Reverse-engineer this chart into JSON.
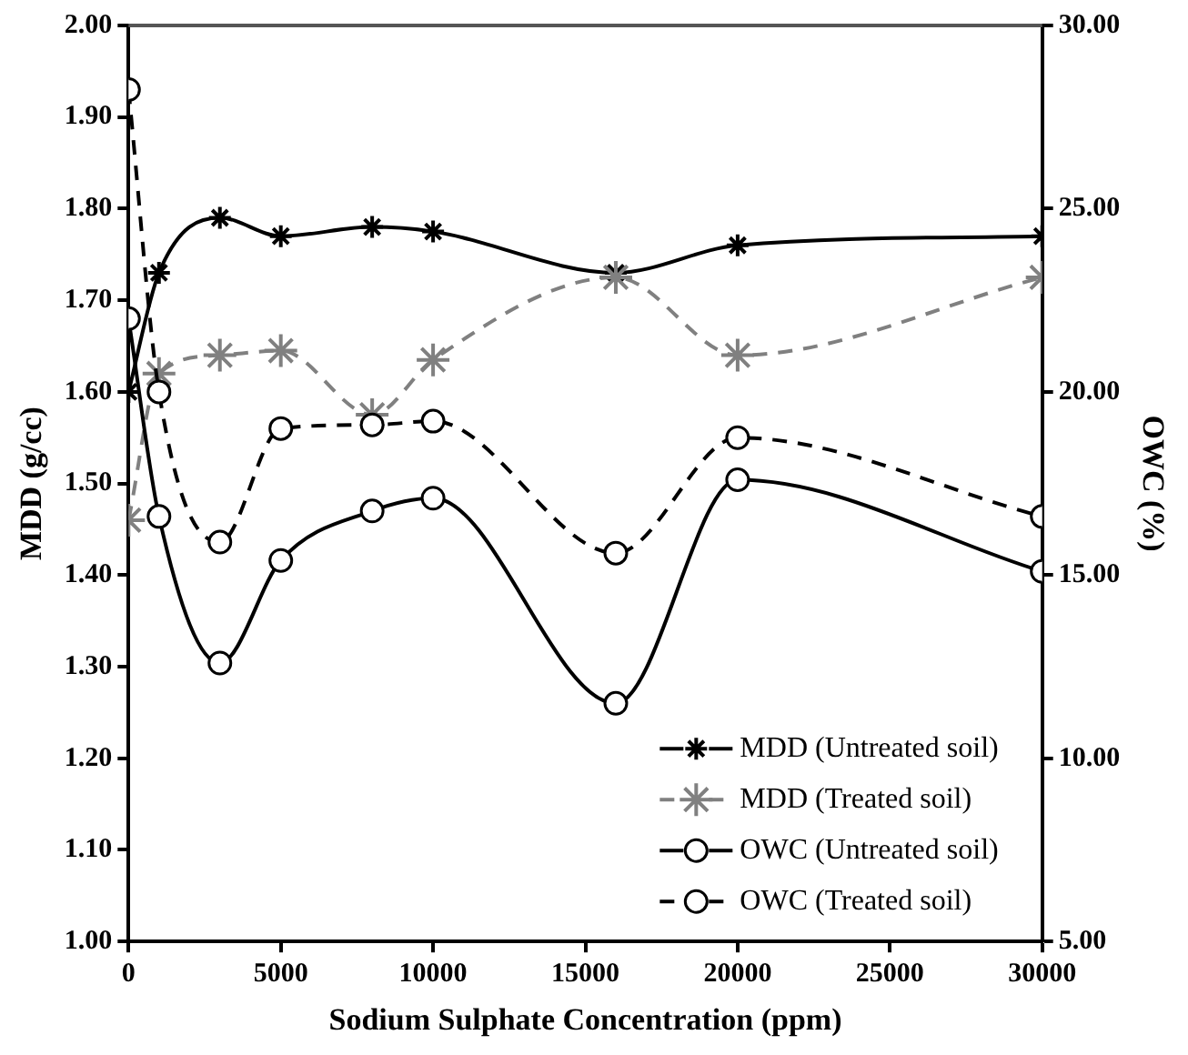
{
  "chart_data": {
    "type": "line",
    "xlabel": "Sodium Sulphate Concentration (ppm)",
    "ylabel": "MDD (g/cc)",
    "y2label": "OWC (%)",
    "x": [
      0,
      1000,
      3000,
      5000,
      8000,
      10000,
      16000,
      20000,
      30000
    ],
    "xlim": [
      0,
      30000
    ],
    "xticks": [
      0,
      5000,
      10000,
      15000,
      20000,
      25000,
      30000
    ],
    "ylim": [
      1,
      2
    ],
    "yticks": [
      {
        "value": 1,
        "label": "1.00"
      },
      {
        "value": 1.1,
        "label": "1.10"
      },
      {
        "value": 1.2,
        "label": "1.20"
      },
      {
        "value": 1.3,
        "label": "1.30"
      },
      {
        "value": 1.4,
        "label": "1.40"
      },
      {
        "value": 1.5,
        "label": "1.50"
      },
      {
        "value": 1.6,
        "label": "1.60"
      },
      {
        "value": 1.7,
        "label": "1.70"
      },
      {
        "value": 1.8,
        "label": "1.80"
      },
      {
        "value": 1.9,
        "label": "1.90"
      },
      {
        "value": 2,
        "label": "2.00"
      }
    ],
    "y2lim": [
      5,
      30
    ],
    "y2ticks": [
      {
        "value": 5,
        "label": "5.00"
      },
      {
        "value": 10,
        "label": "10.00"
      },
      {
        "value": 15,
        "label": "15.00"
      },
      {
        "value": 20,
        "label": "20.00"
      },
      {
        "value": 25,
        "label": "25.00"
      },
      {
        "value": 30,
        "label": "30.00"
      }
    ],
    "grid": false,
    "legend": "bottom right",
    "series": [
      {
        "name": "MDD (Untreated soil)",
        "color": "#000000",
        "marker": "cross",
        "line_style": "solid",
        "values": [
          1.6,
          1.73,
          1.79,
          1.77,
          1.78,
          1.775,
          1.73,
          1.76,
          1.77
        ]
      },
      {
        "name": "MDD (Treated soil)",
        "color": "#808080",
        "marker": "cross",
        "line_style": "dashed",
        "values": [
          1.46,
          1.62,
          1.64,
          1.645,
          1.575,
          1.635,
          1.725,
          1.64,
          1.725
        ]
      },
      {
        "name": "OWC (Untreated soil)",
        "color": "#000000",
        "marker": "circle",
        "line_style": "solid",
        "axis": "y2",
        "values": [
          22.0,
          16.6,
          12.6,
          15.4,
          16.75,
          17.1,
          11.5,
          17.6,
          15.1
        ]
      },
      {
        "name": "OWC (Treated soil)",
        "color": "#000000",
        "marker": "circle",
        "line_style": "dashed",
        "axis": "y2",
        "values": [
          28.25,
          20.0,
          15.9,
          19.0,
          19.1,
          19.2,
          15.6,
          18.75,
          16.6
        ]
      }
    ]
  }
}
